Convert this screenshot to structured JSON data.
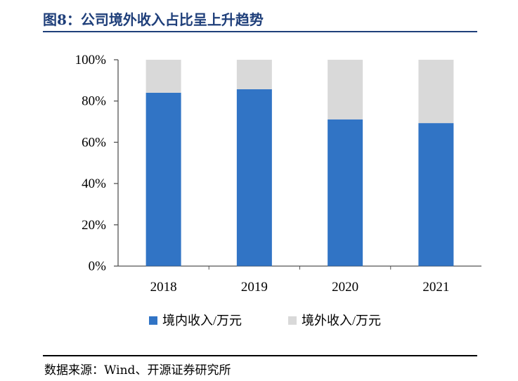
{
  "title": "图8：公司境外收入占比呈上升趋势",
  "source": "数据来源：Wind、开源证券研究所",
  "chart_data": {
    "type": "bar",
    "stacked": true,
    "categories": [
      "2018",
      "2019",
      "2020",
      "2021"
    ],
    "series": [
      {
        "name": "境内收入/万元",
        "color": "#3174c5",
        "values": [
          84.0,
          85.7,
          71.1,
          69.3
        ]
      },
      {
        "name": "境外收入/万元",
        "color": "#d9d9d9",
        "values": [
          16.0,
          14.3,
          28.9,
          30.7
        ]
      }
    ],
    "yticks": [
      "0%",
      "20%",
      "40%",
      "60%",
      "80%",
      "100%"
    ],
    "ylim": [
      0,
      100
    ],
    "ylabel": "",
    "xlabel": "",
    "legend": "bottom"
  }
}
